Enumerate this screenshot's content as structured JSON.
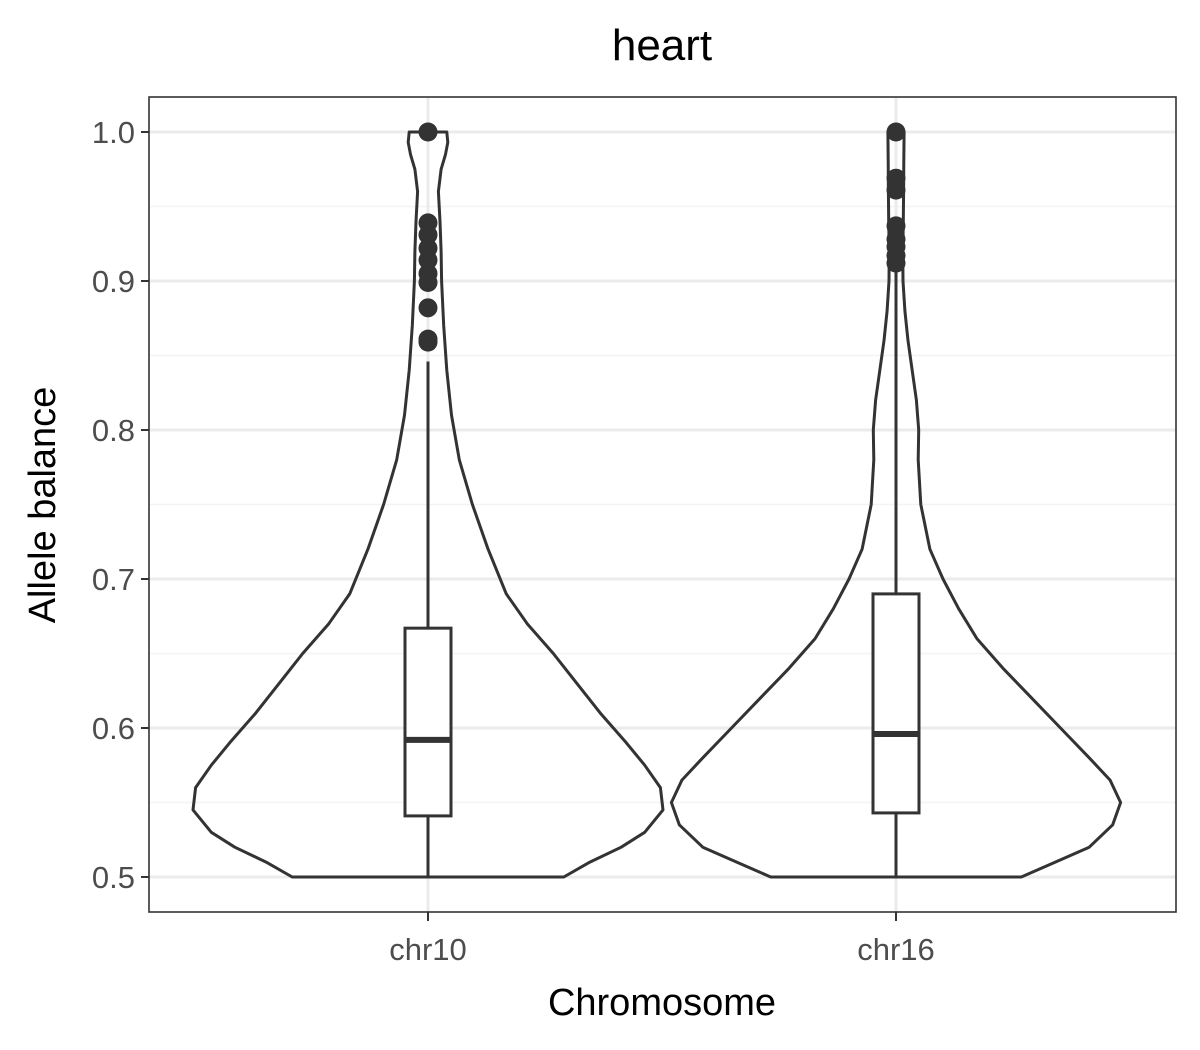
{
  "chart_data": {
    "type": "violin",
    "title": "heart",
    "xlabel": "Chromosome",
    "ylabel": "Allele balance",
    "categories": [
      "chr10",
      "chr16"
    ],
    "ylim": [
      0.4765,
      1.0235
    ],
    "yticks": [
      0.5,
      0.6,
      0.7,
      0.8,
      0.9,
      1.0
    ],
    "ytick_labels": [
      "0.5",
      "0.6",
      "0.7",
      "0.8",
      "0.9",
      "1.0"
    ],
    "grid": true,
    "groups": [
      {
        "category": "chr10",
        "box": {
          "lower_whisker": 0.5,
          "q1": 0.541,
          "median": 0.592,
          "q3": 0.667,
          "upper_whisker": 0.846
        },
        "outliers": [
          0.859,
          0.861,
          0.882,
          0.899,
          0.905,
          0.914,
          0.922,
          0.931,
          0.939,
          1.0
        ],
        "density": [
          [
            0.5,
            0.52
          ],
          [
            0.51,
            0.62
          ],
          [
            0.52,
            0.74
          ],
          [
            0.53,
            0.83
          ],
          [
            0.545,
            0.9
          ],
          [
            0.56,
            0.89
          ],
          [
            0.575,
            0.83
          ],
          [
            0.59,
            0.76
          ],
          [
            0.61,
            0.66
          ],
          [
            0.63,
            0.57
          ],
          [
            0.65,
            0.48
          ],
          [
            0.67,
            0.38
          ],
          [
            0.69,
            0.3
          ],
          [
            0.72,
            0.23
          ],
          [
            0.75,
            0.17
          ],
          [
            0.78,
            0.12
          ],
          [
            0.81,
            0.09
          ],
          [
            0.84,
            0.072
          ],
          [
            0.87,
            0.06
          ],
          [
            0.9,
            0.052
          ],
          [
            0.92,
            0.05
          ],
          [
            0.94,
            0.046
          ],
          [
            0.96,
            0.04
          ],
          [
            0.975,
            0.05
          ],
          [
            0.985,
            0.067
          ],
          [
            0.993,
            0.076
          ],
          [
            1.0,
            0.072
          ]
        ]
      },
      {
        "category": "chr16",
        "box": {
          "lower_whisker": 0.5,
          "q1": 0.543,
          "median": 0.596,
          "q3": 0.69,
          "upper_whisker": 0.91
        },
        "outliers": [
          0.912,
          0.917,
          0.923,
          0.928,
          0.937,
          0.961,
          0.969,
          1.0
        ],
        "density": [
          [
            0.5,
            0.48
          ],
          [
            0.51,
            0.61
          ],
          [
            0.52,
            0.74
          ],
          [
            0.535,
            0.83
          ],
          [
            0.55,
            0.86
          ],
          [
            0.565,
            0.82
          ],
          [
            0.58,
            0.74
          ],
          [
            0.6,
            0.63
          ],
          [
            0.62,
            0.52
          ],
          [
            0.64,
            0.41
          ],
          [
            0.66,
            0.31
          ],
          [
            0.68,
            0.24
          ],
          [
            0.7,
            0.18
          ],
          [
            0.72,
            0.13
          ],
          [
            0.75,
            0.095
          ],
          [
            0.78,
            0.085
          ],
          [
            0.8,
            0.087
          ],
          [
            0.82,
            0.078
          ],
          [
            0.84,
            0.062
          ],
          [
            0.86,
            0.046
          ],
          [
            0.88,
            0.034
          ],
          [
            0.9,
            0.027
          ],
          [
            0.92,
            0.026
          ],
          [
            0.94,
            0.028
          ],
          [
            0.96,
            0.029
          ],
          [
            0.98,
            0.03
          ],
          [
            1.0,
            0.031
          ]
        ]
      }
    ],
    "colors": {
      "violin_stroke": "#333333",
      "box_stroke": "#333333",
      "point": "#333333",
      "grid_major": "#ebebeb",
      "grid_minor": "#f3f3f3",
      "panel_border": "#333333"
    }
  }
}
